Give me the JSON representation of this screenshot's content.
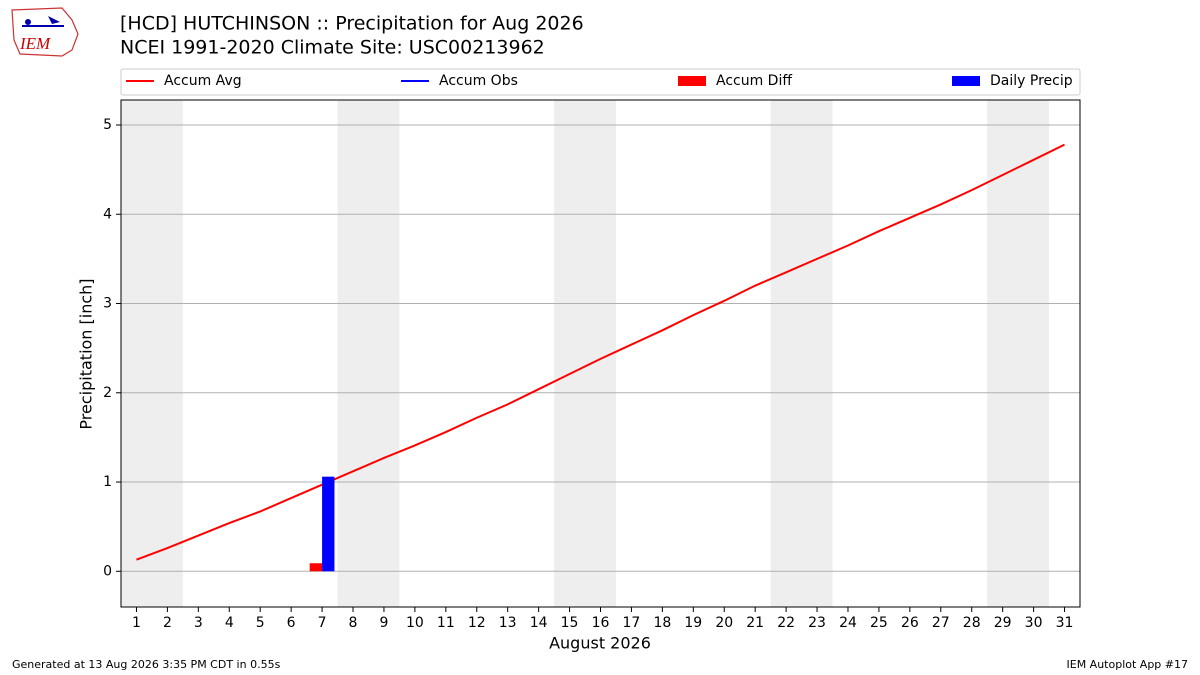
{
  "chart_data": {
    "type": "line",
    "logo_text": "IEM",
    "title": "[HCD] HUTCHINSON :: Precipitation for Aug 2026",
    "subtitle": "NCEI 1991-2020 Climate Site: USC00213962",
    "xlabel": "August 2026",
    "ylabel": "Precipitation [inch]",
    "footer_left": "Generated at 13 Aug 2026 3:35 PM CDT in 0.55s",
    "footer_right": "IEM Autoplot App #17",
    "x": [
      1,
      2,
      3,
      4,
      5,
      6,
      7,
      8,
      9,
      10,
      11,
      12,
      13,
      14,
      15,
      16,
      17,
      18,
      19,
      20,
      21,
      22,
      23,
      24,
      25,
      26,
      27,
      28,
      29,
      30,
      31
    ],
    "xlim": [
      0.5,
      31.5
    ],
    "xticks": [
      1,
      2,
      3,
      4,
      5,
      6,
      7,
      8,
      9,
      10,
      11,
      12,
      13,
      14,
      15,
      16,
      17,
      18,
      19,
      20,
      21,
      22,
      23,
      24,
      25,
      26,
      27,
      28,
      29,
      30,
      31
    ],
    "ylim": [
      -0.4,
      5.28
    ],
    "yticks": [
      0,
      1,
      2,
      3,
      4,
      5
    ],
    "grid": true,
    "shaded_ranges": [
      [
        0.5,
        2.5
      ],
      [
        7.5,
        9.5
      ],
      [
        14.5,
        16.5
      ],
      [
        21.5,
        23.5
      ],
      [
        28.5,
        30.5
      ]
    ],
    "shade_color": "#eeeeee",
    "series": [
      {
        "name": "Accum Avg",
        "type": "line",
        "color": "#ff0000",
        "values": [
          0.13,
          0.26,
          0.4,
          0.54,
          0.67,
          0.82,
          0.97,
          1.12,
          1.27,
          1.41,
          1.56,
          1.72,
          1.87,
          2.04,
          2.21,
          2.38,
          2.54,
          2.7,
          2.87,
          3.03,
          3.2,
          3.35,
          3.5,
          3.65,
          3.81,
          3.96,
          4.11,
          4.27,
          4.44,
          4.61,
          4.78
        ]
      },
      {
        "name": "Accum Obs",
        "type": "line",
        "color": "#0000ff",
        "values": [
          null,
          null,
          null,
          null,
          null,
          null,
          null,
          null,
          null,
          null,
          null,
          null,
          null,
          null,
          null,
          null,
          null,
          null,
          null,
          null,
          null,
          null,
          null,
          null,
          null,
          null,
          null,
          null,
          null,
          null,
          null
        ]
      },
      {
        "name": "Accum Diff",
        "type": "bar",
        "color": "#ff0000",
        "offset": -0.2,
        "values": [
          null,
          null,
          null,
          null,
          null,
          null,
          0.09,
          null,
          null,
          null,
          null,
          null,
          null,
          null,
          null,
          null,
          null,
          null,
          null,
          null,
          null,
          null,
          null,
          null,
          null,
          null,
          null,
          null,
          null,
          null,
          null
        ]
      },
      {
        "name": "Daily Precip",
        "type": "bar",
        "color": "#0000ff",
        "offset": 0.2,
        "values": [
          null,
          null,
          null,
          null,
          null,
          null,
          1.06,
          null,
          null,
          null,
          null,
          null,
          null,
          null,
          null,
          null,
          null,
          null,
          null,
          null,
          null,
          null,
          null,
          null,
          null,
          null,
          null,
          null,
          null,
          null,
          null
        ]
      }
    ]
  }
}
